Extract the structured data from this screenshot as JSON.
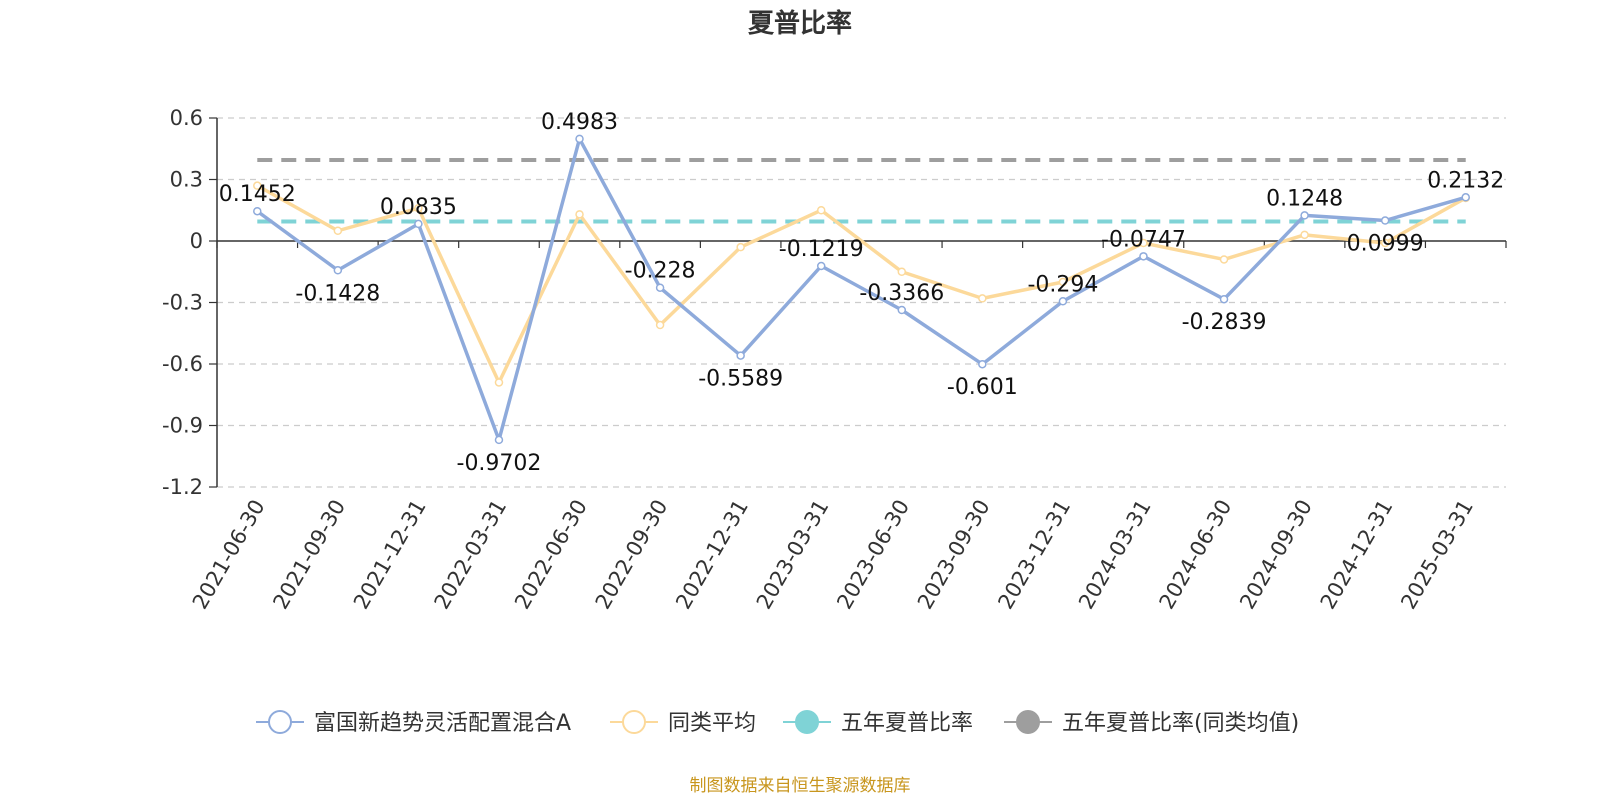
{
  "chart_data": {
    "type": "line",
    "title": "夏普比率",
    "categories": [
      "2021-06-30",
      "2021-09-30",
      "2021-12-31",
      "2022-03-31",
      "2022-06-30",
      "2022-09-30",
      "2022-12-31",
      "2023-03-31",
      "2023-06-30",
      "2023-09-30",
      "2023-12-31",
      "2024-03-31",
      "2024-06-30",
      "2024-09-30",
      "2024-12-31",
      "2025-03-31"
    ],
    "series": [
      {
        "name": "富国新趋势灵活配置混合A",
        "color": "#8eaadb",
        "values": [
          0.1452,
          -0.1428,
          0.0835,
          -0.9702,
          0.4983,
          -0.228,
          -0.5589,
          -0.1219,
          -0.3366,
          -0.601,
          -0.294,
          -0.0747,
          -0.2839,
          0.1248,
          0.0999,
          0.2132
        ],
        "labels": [
          "0.1452",
          "-0.1428",
          "0.0835",
          "-0.9702",
          "0.4983",
          "-0.228",
          "-0.5589",
          "-0.1219",
          "-0.3366",
          "-0.601",
          "-0.294",
          "-0.0747",
          "-0.2839",
          "0.1248",
          "0.0999",
          "0.2132"
        ]
      },
      {
        "name": "同类平均",
        "color": "#fcd99a",
        "values": [
          0.27,
          0.05,
          0.16,
          -0.69,
          0.13,
          -0.41,
          -0.03,
          0.15,
          -0.15,
          -0.28,
          -0.2,
          -0.01,
          -0.09,
          0.03,
          -0.01,
          0.21
        ]
      },
      {
        "name": "五年夏普比率",
        "color": "#7fd3d6",
        "value": 0.095
      },
      {
        "name": "五年夏普比率(同类均值)",
        "color": "#9e9e9e",
        "value": 0.395
      }
    ],
    "y_ticks": [
      "0.6",
      "0.3",
      "0",
      "-0.3",
      "-0.6",
      "-0.9",
      "-1.2"
    ],
    "ylim": [
      -1.2,
      0.6
    ],
    "grid": true,
    "legend_position": "bottom"
  },
  "footer": {
    "source": "制图数据来自恒生聚源数据库"
  }
}
